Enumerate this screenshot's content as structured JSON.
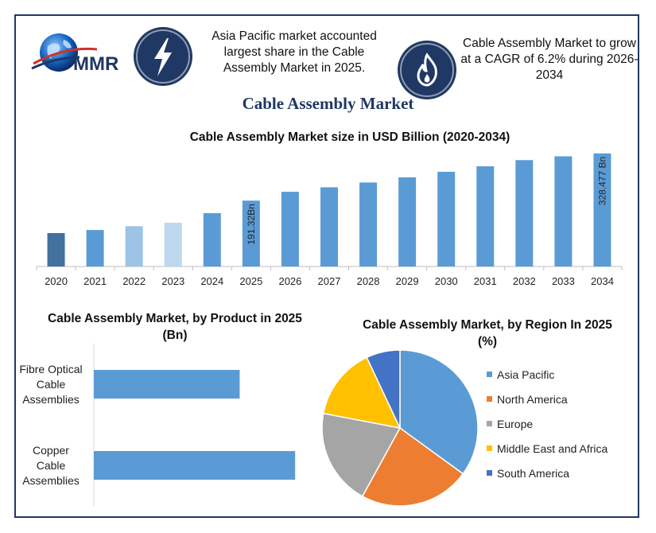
{
  "header": {
    "logo_text": "MMR",
    "highlight_1": "Asia Pacific market accounted largest share in the Cable Assembly Market in 2025.",
    "highlight_2": "Cable Assembly Market to grow at a CAGR of 6.2% during 2026-2034",
    "icons": [
      "globe-icon",
      "lightning-bolt-icon",
      "flame-icon"
    ]
  },
  "title": "Cable Assembly Market",
  "colors": {
    "accent": "#1f3864",
    "bar": "#5b9bd5"
  },
  "chart_data": [
    {
      "type": "bar",
      "title": "Cable Assembly Market size in USD Billion (2020-2034)",
      "categories": [
        "2020",
        "2021",
        "2022",
        "2023",
        "2024",
        "2025",
        "2026",
        "2027",
        "2028",
        "2029",
        "2030",
        "2031",
        "2032",
        "2033",
        "2034"
      ],
      "values": [
        97,
        106,
        117,
        127,
        155,
        191.32,
        217,
        230,
        244,
        259,
        275,
        291,
        309,
        320,
        328.477
      ],
      "bar_colors": [
        "#41719c",
        "#5b9bd5",
        "#9dc3e6",
        "#bdd7ee",
        "#5b9bd5",
        "#5b9bd5",
        "#5b9bd5",
        "#5b9bd5",
        "#5b9bd5",
        "#5b9bd5",
        "#5b9bd5",
        "#5b9bd5",
        "#5b9bd5",
        "#5b9bd5",
        "#5b9bd5"
      ],
      "data_labels": [
        {
          "category": "2025",
          "text": "191.32Bn"
        },
        {
          "category": "2034",
          "text": "328.477 Bn"
        }
      ],
      "ylim": [
        0,
        335
      ]
    },
    {
      "type": "bar",
      "orientation": "horizontal",
      "title": "Cable Assembly Market, by Product in 2025 (Bn)",
      "categories": [
        "Fibre Optical Cable Assemblies",
        "Copper Cable Assemblies"
      ],
      "category_lines": [
        [
          "Fibre Optical",
          "Cable",
          "Assemblies"
        ],
        [
          "Copper",
          "Cable",
          "Assemblies"
        ]
      ],
      "values": [
        71,
        98
      ],
      "xlim": [
        0,
        120
      ]
    },
    {
      "type": "pie",
      "title": "Cable Assembly Market, by Region In 2025 (%)",
      "labels": [
        "Asia Pacific",
        "North America",
        "Europe",
        "Middle East and Africa",
        "South America"
      ],
      "values": [
        35,
        23,
        20,
        15,
        7
      ],
      "colors": [
        "#5b9bd5",
        "#ed7d31",
        "#a5a5a5",
        "#ffc000",
        "#4472c4"
      ],
      "legend_position": "right"
    }
  ]
}
